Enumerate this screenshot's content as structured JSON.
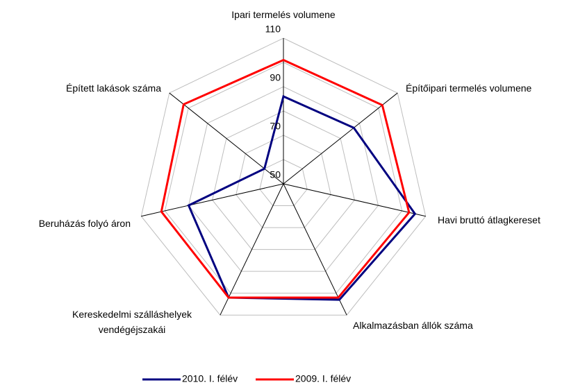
{
  "chart_data": {
    "type": "radar",
    "categories": [
      "Ipari termelés volumene",
      "Építőipari termelés volumene",
      "Havi bruttó átlagkereset",
      "Alkalmazásban állók száma",
      "Kereskedelmi szálláshelyek\nvendégéjszakái",
      "Beruházás folyó áron",
      "Épített lakások száma"
    ],
    "series": [
      {
        "name": "2010. I. félév",
        "color": "#000080",
        "values": [
          86,
          87,
          105.5,
          103,
          102,
          90,
          60
        ]
      },
      {
        "name": "2009. I. félév",
        "color": "#ff0000",
        "values": [
          101,
          102,
          103,
          102,
          102,
          101.5,
          102.5
        ]
      }
    ],
    "ylim": [
      50,
      110
    ],
    "yticks": [
      50,
      70,
      90,
      110
    ],
    "minor_yticks": [
      60,
      80,
      100
    ],
    "grid": true,
    "legend": "bottom"
  }
}
